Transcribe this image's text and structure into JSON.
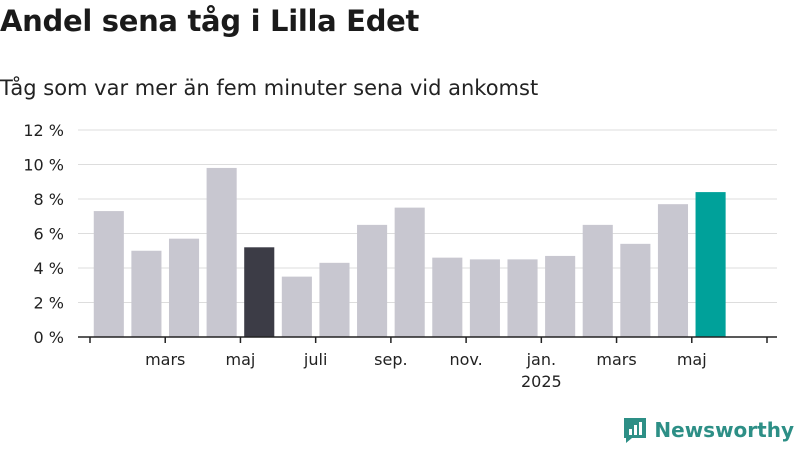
{
  "title": "Andel sena tåg i Lilla Edet",
  "subtitle": "Tåg som var mer än fem minuter sena vid ankomst",
  "brand": "Newsworthy",
  "colors": {
    "bar_default": "#c8c7d0",
    "bar_highlight_dark": "#3c3c46",
    "bar_highlight_accent": "#00a19a",
    "grid": "#dddddd",
    "axis": "#222222",
    "brand": "#2d8f86"
  },
  "chart_data": {
    "type": "bar",
    "ylim": [
      0,
      12
    ],
    "y_ticks": [
      {
        "value": 0,
        "label": "0 %"
      },
      {
        "value": 2,
        "label": "2 %"
      },
      {
        "value": 4,
        "label": "4 %"
      },
      {
        "value": 6,
        "label": "6 %"
      },
      {
        "value": 8,
        "label": "8 %"
      },
      {
        "value": 10,
        "label": "10 %"
      },
      {
        "value": 12,
        "label": "12 %"
      }
    ],
    "grid": true,
    "categories": [
      "2024-01",
      "2024-02",
      "2024-03",
      "2024-04",
      "2024-05",
      "2024-06",
      "2024-07",
      "2024-08",
      "2024-09",
      "2024-10",
      "2024-11",
      "2024-12",
      "2025-01",
      "2025-02",
      "2025-03",
      "2025-04",
      "2025-05",
      "2025-06"
    ],
    "values": [
      7.3,
      5.0,
      5.7,
      9.8,
      5.2,
      3.5,
      4.3,
      6.5,
      7.5,
      4.6,
      4.5,
      4.5,
      4.7,
      6.5,
      5.4,
      7.7,
      8.4,
      null
    ],
    "highlight": {
      "4": "dark",
      "16": "accent"
    },
    "x_tick_labels": [
      {
        "at": 1.5,
        "label": "mars"
      },
      {
        "at": 3.5,
        "label": "maj"
      },
      {
        "at": 5.5,
        "label": "juli"
      },
      {
        "at": 7.5,
        "label": "sep."
      },
      {
        "at": 9.5,
        "label": "nov."
      },
      {
        "at": 11.5,
        "label": "jan.",
        "label2": "2025"
      },
      {
        "at": 13.5,
        "label": "mars"
      },
      {
        "at": 15.5,
        "label": "maj"
      }
    ],
    "x_tick_marks": [
      -0.5,
      1.5,
      3.5,
      5.5,
      7.5,
      9.5,
      11.5,
      13.5,
      15.5,
      17.5
    ]
  }
}
